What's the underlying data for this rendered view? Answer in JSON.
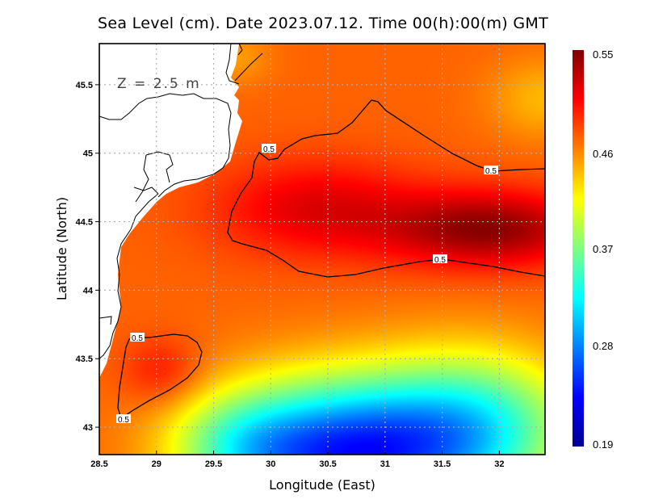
{
  "title": "Sea Level (cm). Date 2023.07.12. Time 00(h):00(m) GMT",
  "depth_label": "Z = 2.5 m",
  "chart_data": {
    "type": "heatmap",
    "title": "Sea Level (cm). Date 2023.07.12. Time 00(h):00(m) GMT",
    "xlabel": "Longitude (East)",
    "ylabel": "Latitude (North)",
    "xlim": [
      28.5,
      32.4
    ],
    "ylim": [
      42.8,
      45.8
    ],
    "x_ticks": [
      "28.5",
      "29",
      "29.5",
      "30",
      "30.5",
      "31",
      "31.5",
      "32"
    ],
    "y_ticks": [
      "43",
      "43.5",
      "44",
      "44.5",
      "45",
      "45.5"
    ],
    "grid": true,
    "colorbar": {
      "min": 0.19,
      "max": 0.55,
      "ticks": [
        "0.55",
        "0.46",
        "0.37",
        "0.28",
        "0.19"
      ],
      "colormap": "jet",
      "placement": "right"
    },
    "contours": [
      {
        "level": 0.5,
        "label": "0.5",
        "region": "northern band 29.6-32.4E, 44.1-45.4N"
      },
      {
        "level": 0.5,
        "label": "0.5",
        "region": "southwest closed cell near 29.1E, 43.4N"
      }
    ],
    "contour_labels": [
      "0.5",
      "0.5",
      "0.5",
      "0.5",
      "0.5"
    ],
    "features": [
      {
        "name": "maximum band",
        "lon": 32.2,
        "lat": 44.45,
        "value": 0.55
      },
      {
        "name": "southwest maximum",
        "lon": 29.05,
        "lat": 43.4,
        "value": 0.53
      },
      {
        "name": "southern minimum",
        "lon": 30.4,
        "lat": 42.85,
        "value": 0.22
      },
      {
        "name": "cyan plateau",
        "lon": 31.6,
        "lat": 43.1,
        "value": 0.32
      }
    ],
    "land_color": "#ffffff"
  },
  "colors": {
    "coastline": "#000000",
    "grid": "#b0b0b0",
    "contour": "#000000",
    "frame": "#000000"
  }
}
